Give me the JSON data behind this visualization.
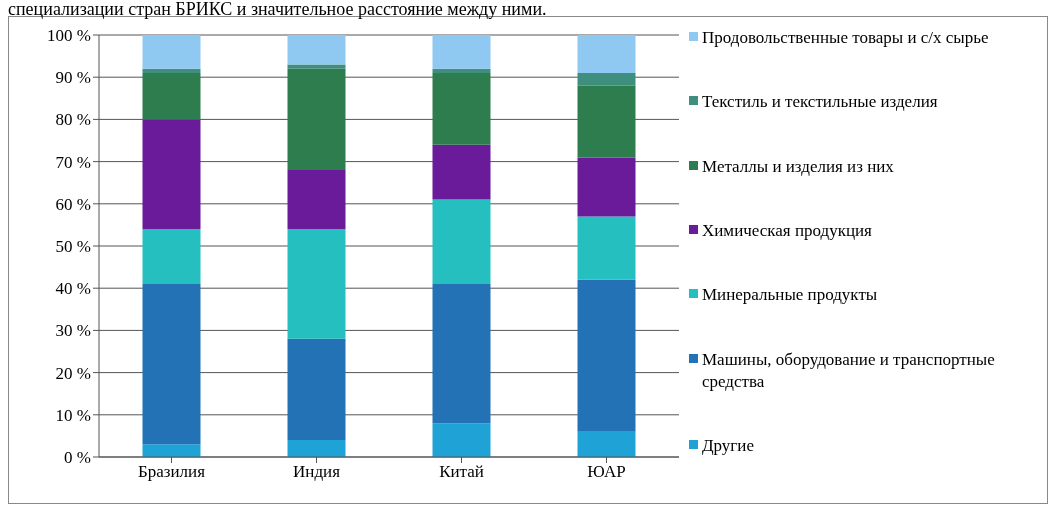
{
  "chart_data": {
    "type": "bar",
    "stacked": true,
    "annotations": [
      "специализации стран БРИКС и значительное расстояние между ними."
    ],
    "categories": [
      "Бразилия",
      "Индия",
      "Китай",
      "ЮАР"
    ],
    "series": [
      {
        "name": "Другие",
        "color": "#1fa3d6",
        "values": [
          3,
          4,
          8,
          6
        ]
      },
      {
        "name": "Машины, оборудование и транспортные средства",
        "color": "#2372b5",
        "values": [
          38,
          24,
          33,
          36
        ]
      },
      {
        "name": "Минеральные продукты",
        "color": "#25bfbf",
        "values": [
          13,
          26,
          20,
          15
        ]
      },
      {
        "name": "Химическая продукция",
        "color": "#6a1b9a",
        "values": [
          26,
          14,
          13,
          14
        ]
      },
      {
        "name": "Металлы и изделия из них",
        "color": "#2e7d4f",
        "values": [
          11,
          24,
          17,
          17
        ]
      },
      {
        "name": "Текстиль и текстильные изделия",
        "color": "#3f8f7f",
        "values": [
          1,
          1,
          1,
          3
        ]
      },
      {
        "name": "Продовольственные товары и с/х сырье",
        "color": "#8fc8f0",
        "values": [
          8,
          7,
          8,
          9
        ]
      }
    ],
    "ylim": [
      0,
      100
    ],
    "yticks": [
      {
        "value": 0,
        "label": "0 %"
      },
      {
        "value": 10,
        "label": "10 %"
      },
      {
        "value": 20,
        "label": "20 %"
      },
      {
        "value": 30,
        "label": "30 %"
      },
      {
        "value": 40,
        "label": "40 %"
      },
      {
        "value": 50,
        "label": "50 %"
      },
      {
        "value": 60,
        "label": "60 %"
      },
      {
        "value": 70,
        "label": "70 %"
      },
      {
        "value": 80,
        "label": "80 %"
      },
      {
        "value": 90,
        "label": "90 %"
      },
      {
        "value": 100,
        "label": "100 %"
      }
    ],
    "grid": "y",
    "legend": "right"
  }
}
